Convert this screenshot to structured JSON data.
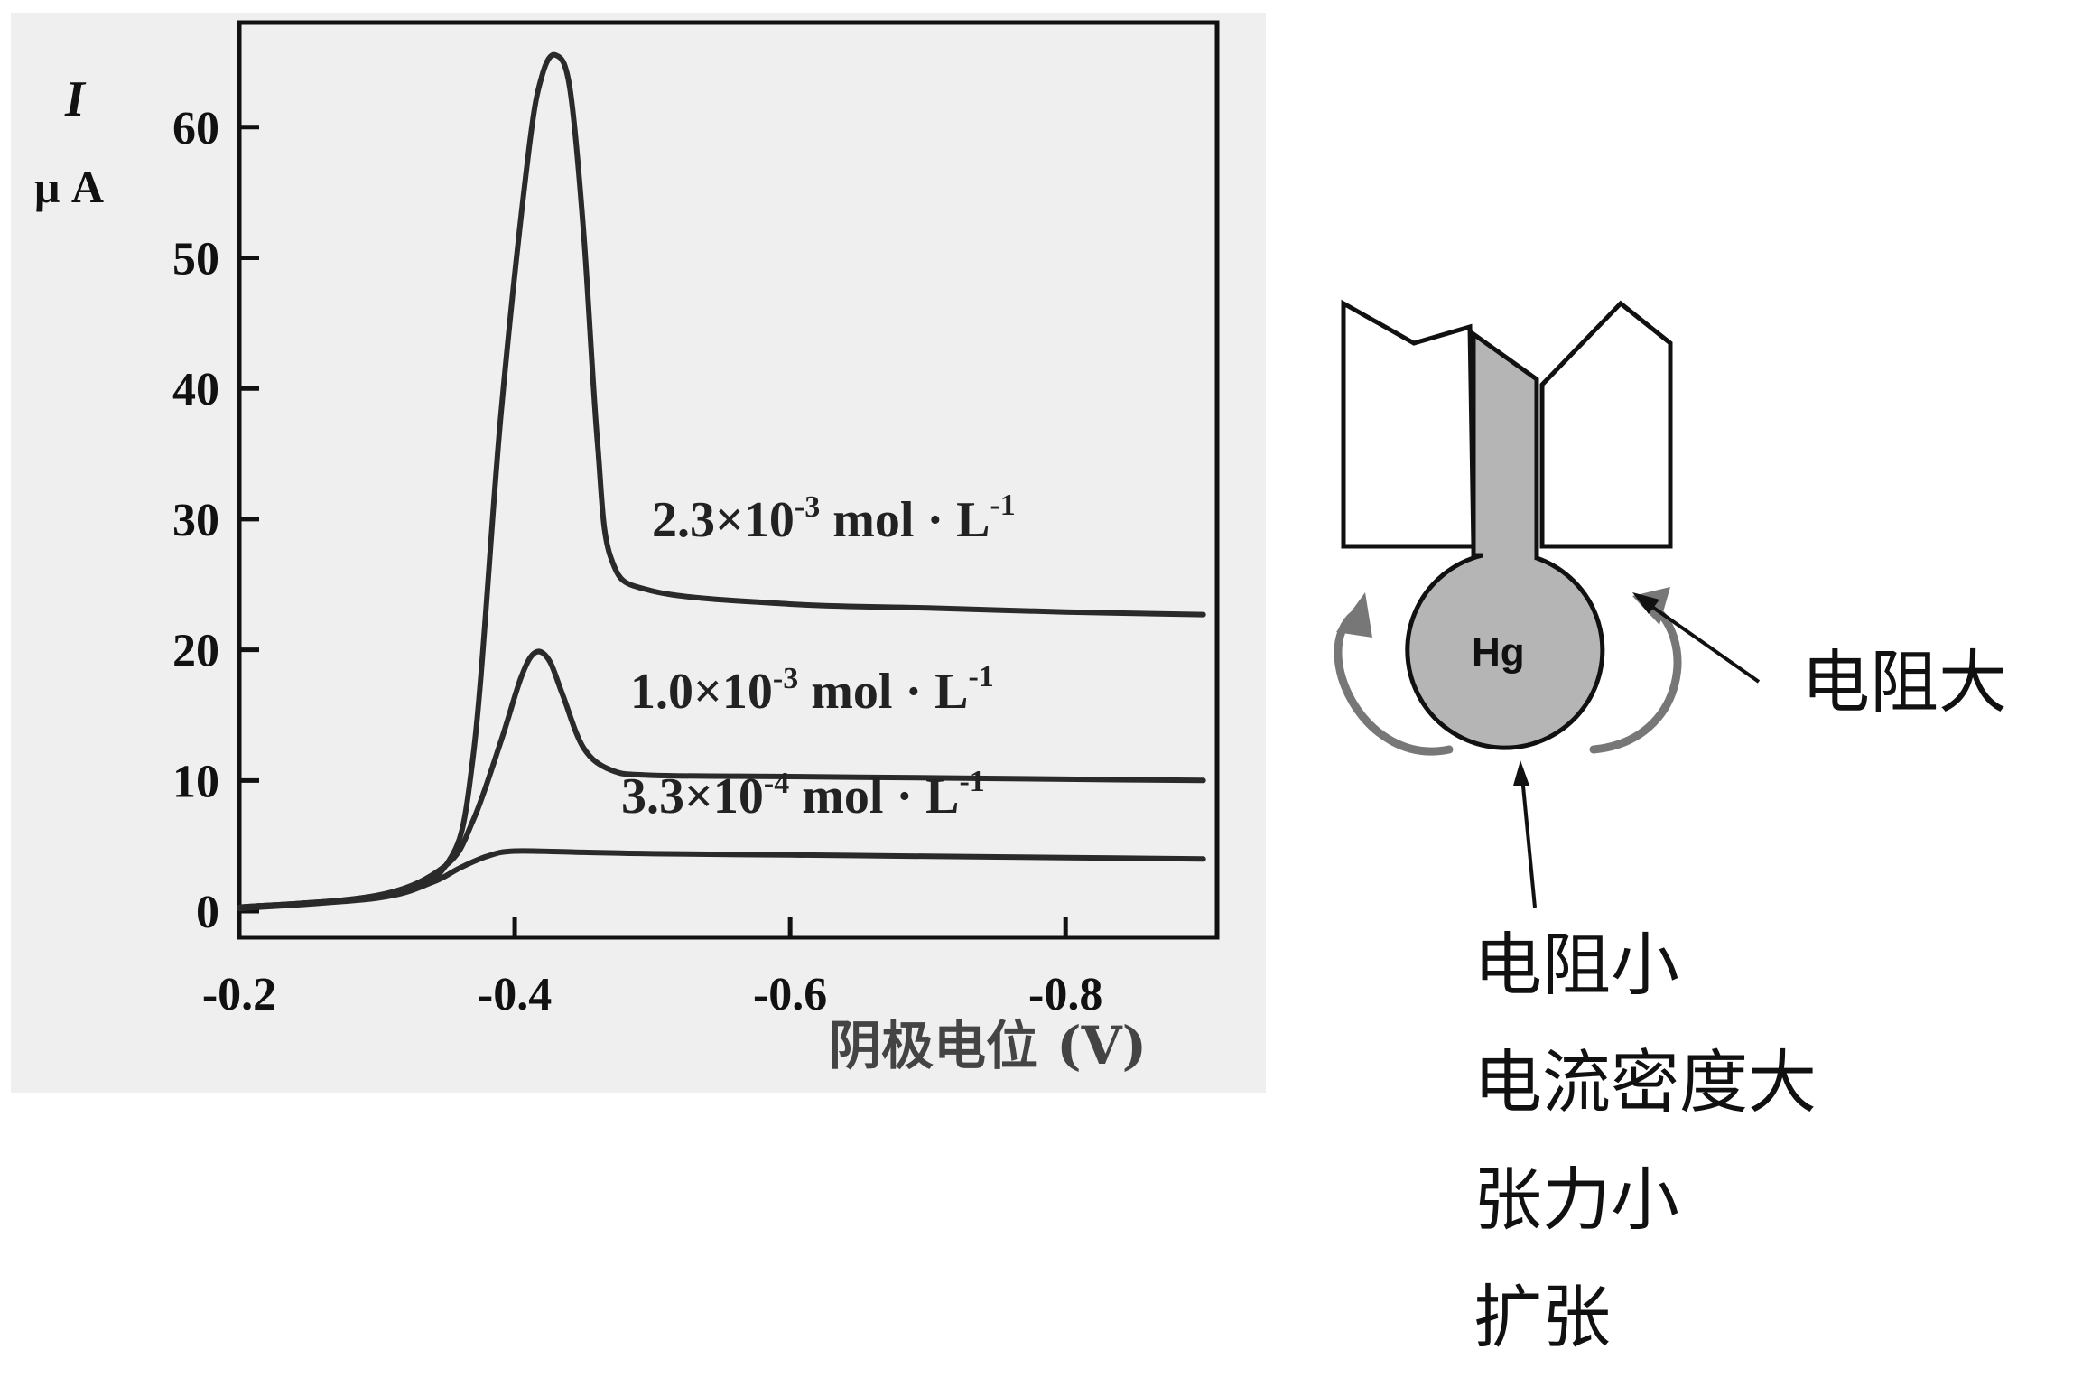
{
  "chart_data": {
    "type": "line",
    "xlabel": "阴极电位 (V)",
    "ylabel_var": "I",
    "ylabel_unit": "μ A",
    "xlim": [
      -0.2,
      -0.91
    ],
    "ylim": [
      -2,
      68
    ],
    "xticks": [
      {
        "value": -0.2,
        "label": "-0.2"
      },
      {
        "value": -0.4,
        "label": "-0.4"
      },
      {
        "value": -0.6,
        "label": "-0.6"
      },
      {
        "value": -0.8,
        "label": "-0.8"
      }
    ],
    "yticks": [
      {
        "value": 0,
        "label": "0"
      },
      {
        "value": 10,
        "label": "10"
      },
      {
        "value": 20,
        "label": "20"
      },
      {
        "value": 30,
        "label": "30"
      },
      {
        "value": 40,
        "label": "40"
      },
      {
        "value": 50,
        "label": "50"
      },
      {
        "value": 60,
        "label": "60"
      }
    ],
    "series": [
      {
        "label": {
          "pre": "2.3×10",
          "exp": "-3",
          "post": " mol · L",
          "unit_exp": "-1"
        },
        "x": [
          -0.2,
          -0.3,
          -0.35,
          -0.37,
          -0.39,
          -0.41,
          -0.42,
          -0.43,
          -0.44,
          -0.45,
          -0.46,
          -0.47,
          -0.5,
          -0.6,
          -0.7,
          -0.8,
          -0.9
        ],
        "y": [
          0.3,
          1.2,
          3.5,
          12,
          38,
          58,
          64,
          65.5,
          63,
          52,
          36,
          27,
          24.5,
          23.5,
          23.2,
          22.9,
          22.7
        ]
      },
      {
        "label": {
          "pre": "1.0×10",
          "exp": "-3",
          "post": " mol · L",
          "unit_exp": "-1"
        },
        "x": [
          -0.2,
          -0.3,
          -0.35,
          -0.37,
          -0.39,
          -0.405,
          -0.415,
          -0.425,
          -0.435,
          -0.45,
          -0.47,
          -0.5,
          -0.6,
          -0.7,
          -0.8,
          -0.9
        ],
        "y": [
          0.3,
          1.2,
          3.5,
          7,
          13,
          18,
          19.8,
          19.2,
          16.5,
          12.5,
          10.8,
          10.4,
          10.3,
          10.2,
          10.1,
          10.0
        ]
      },
      {
        "label": {
          "pre": "3.3×10",
          "exp": "-4",
          "post": " mol · L",
          "unit_exp": "-1"
        },
        "x": [
          -0.2,
          -0.3,
          -0.34,
          -0.36,
          -0.38,
          -0.4,
          -0.45,
          -0.5,
          -0.6,
          -0.7,
          -0.8,
          -0.9
        ],
        "y": [
          0.2,
          1.0,
          2.2,
          3.3,
          4.2,
          4.6,
          4.5,
          4.4,
          4.3,
          4.2,
          4.1,
          4.0
        ]
      }
    ]
  },
  "diagram": {
    "drop_label": "Hg",
    "side_label": "电阻大",
    "bottom_lines": [
      "电阻小",
      "电流密度大",
      "张力小",
      "扩张"
    ]
  }
}
